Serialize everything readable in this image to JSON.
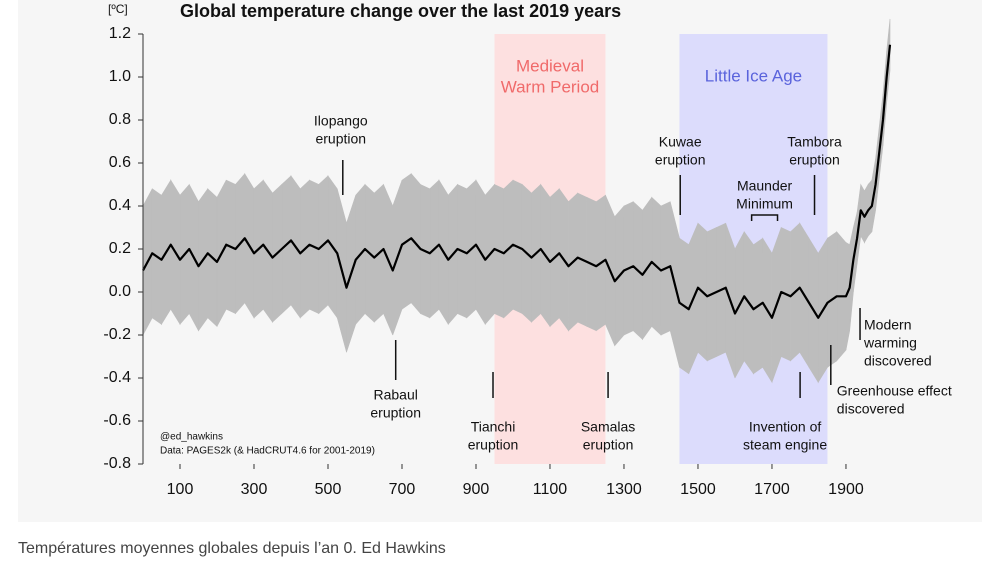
{
  "chart_data": {
    "type": "line",
    "title": "Global temperature change over the last 2019 years",
    "y_unit": "[ºC]",
    "xlim": [
      0,
      2019
    ],
    "ylim": [
      -0.8,
      1.2
    ],
    "xticks": [
      100,
      300,
      500,
      700,
      900,
      1100,
      1300,
      1500,
      1700,
      1900
    ],
    "yticks": [
      {
        "value": 1.2,
        "label": "1.2"
      },
      {
        "value": 1,
        "label": "1.0"
      },
      0.8,
      0.6,
      0.4,
      0.2,
      {
        "value": 0,
        "label": "0.0"
      },
      -0.2,
      -0.4,
      -0.6,
      -0.8
    ],
    "x": [
      0,
      25,
      50,
      75,
      100,
      125,
      150,
      175,
      200,
      225,
      250,
      275,
      300,
      325,
      350,
      375,
      400,
      425,
      450,
      475,
      500,
      525,
      550,
      575,
      600,
      625,
      650,
      675,
      700,
      725,
      750,
      775,
      800,
      825,
      850,
      875,
      900,
      925,
      950,
      975,
      1000,
      1025,
      1050,
      1075,
      1100,
      1125,
      1150,
      1175,
      1200,
      1225,
      1250,
      1275,
      1300,
      1325,
      1350,
      1375,
      1400,
      1425,
      1450,
      1475,
      1500,
      1525,
      1550,
      1575,
      1600,
      1625,
      1650,
      1675,
      1700,
      1725,
      1750,
      1775,
      1800,
      1825,
      1850,
      1875,
      1900,
      1910,
      1920,
      1930,
      1940,
      1950,
      1960,
      1970,
      1980,
      1990,
      2000,
      2010,
      2019
    ],
    "series": [
      {
        "color": "#000000",
        "band_color": "#bdbdbd",
        "values": [
          0.1,
          0.18,
          0.15,
          0.22,
          0.15,
          0.2,
          0.12,
          0.18,
          0.14,
          0.22,
          0.2,
          0.25,
          0.18,
          0.22,
          0.16,
          0.2,
          0.24,
          0.18,
          0.22,
          0.2,
          0.24,
          0.18,
          0.02,
          0.15,
          0.2,
          0.16,
          0.2,
          0.1,
          0.22,
          0.25,
          0.2,
          0.18,
          0.22,
          0.15,
          0.2,
          0.18,
          0.22,
          0.15,
          0.2,
          0.18,
          0.22,
          0.2,
          0.16,
          0.2,
          0.14,
          0.18,
          0.12,
          0.16,
          0.14,
          0.12,
          0.15,
          0.05,
          0.1,
          0.12,
          0.08,
          0.14,
          0.1,
          0.12,
          -0.05,
          -0.08,
          0.02,
          -0.02,
          0.0,
          0.02,
          -0.1,
          -0.02,
          -0.08,
          -0.05,
          -0.12,
          0.0,
          -0.02,
          0.02,
          -0.05,
          -0.12,
          -0.05,
          -0.02,
          -0.02,
          0.02,
          0.15,
          0.25,
          0.38,
          0.35,
          0.38,
          0.4,
          0.5,
          0.65,
          0.8,
          1.0,
          1.15
        ],
        "error": [
          0.3,
          0.3,
          0.3,
          0.3,
          0.3,
          0.3,
          0.3,
          0.3,
          0.3,
          0.3,
          0.3,
          0.3,
          0.3,
          0.3,
          0.3,
          0.3,
          0.3,
          0.3,
          0.3,
          0.3,
          0.3,
          0.3,
          0.3,
          0.3,
          0.3,
          0.3,
          0.3,
          0.3,
          0.3,
          0.3,
          0.3,
          0.3,
          0.3,
          0.3,
          0.3,
          0.3,
          0.3,
          0.3,
          0.3,
          0.3,
          0.3,
          0.3,
          0.3,
          0.3,
          0.3,
          0.3,
          0.3,
          0.3,
          0.3,
          0.3,
          0.3,
          0.3,
          0.3,
          0.3,
          0.3,
          0.3,
          0.3,
          0.3,
          0.3,
          0.3,
          0.3,
          0.3,
          0.3,
          0.3,
          0.3,
          0.3,
          0.3,
          0.3,
          0.3,
          0.3,
          0.3,
          0.3,
          0.3,
          0.3,
          0.3,
          0.3,
          0.25,
          0.2,
          0.15,
          0.12,
          0.12,
          0.12,
          0.12,
          0.12,
          0.12,
          0.12,
          0.12,
          0.12,
          0.12
        ]
      }
    ],
    "regions": [
      {
        "label": [
          "Medieval",
          "Warm Period"
        ],
        "range": [
          950,
          1250
        ],
        "color": "#fde0e0",
        "text_color": "#f06a6a"
      },
      {
        "label": [
          "Little Ice Age"
        ],
        "range": [
          1450,
          1850
        ],
        "color": "#dcdcfc",
        "text_color": "#5a63dc"
      }
    ],
    "annotations": [
      {
        "label": [
          "Ilopango",
          "eruption"
        ],
        "x": [
          540
        ]
      },
      {
        "label": [
          "Rabaul",
          "eruption"
        ],
        "x": [
          683
        ]
      },
      {
        "label": [
          "Tianchi",
          "eruption"
        ],
        "x": [
          946
        ]
      },
      {
        "label": [
          "Samalas",
          "eruption"
        ],
        "x": [
          1257
        ]
      },
      {
        "label": [
          "Kuwae",
          "eruption"
        ],
        "x": [
          1452
        ]
      },
      {
        "label": [
          "Maunder",
          "Minimum"
        ],
        "x": [
          1645,
          1715
        ]
      },
      {
        "label": [
          "Tambora",
          "eruption"
        ],
        "x": [
          1815
        ]
      },
      {
        "label": [
          "Invention of",
          "steam engine"
        ],
        "x": [
          1776
        ]
      },
      {
        "label": [
          "Greenhouse effect",
          "discovered"
        ],
        "x": [
          1859
        ]
      },
      {
        "label": [
          "Modern",
          "warming",
          "discovered"
        ],
        "x": [
          1938
        ]
      }
    ],
    "credits": [
      "@ed_hawkins",
      "Data: PAGES2k (& HadCRUT4.6 for 2001-2019)"
    ]
  },
  "caption": "Températures moyennes globales depuis l’an 0. Ed Hawkins"
}
